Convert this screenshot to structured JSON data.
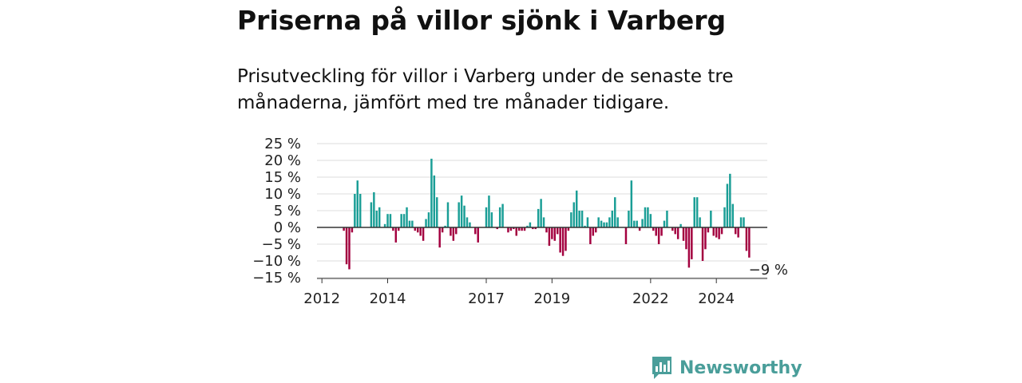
{
  "title": "Priserna på villor sjönk i Varberg",
  "subtitle": "Prisutveckling för villor i Varberg under de senaste tre månaderna, jämfört med tre månader tidigare.",
  "brand": {
    "name": "Newsworthy",
    "icon": "newsworthy-bar-chart-icon"
  },
  "colors": {
    "positive": "#1a9e96",
    "negative": "#a3003f",
    "grid": "#dddddd",
    "zero_line": "#333333",
    "brand": "#4a9e9a"
  },
  "chart_data": {
    "type": "bar",
    "ylim": [
      -15,
      25
    ],
    "y_ticks": [
      25,
      20,
      15,
      10,
      5,
      0,
      -5,
      -10,
      -15
    ],
    "y_tick_labels": [
      "25 %",
      "20 %",
      "15 %",
      "10 %",
      "5 %",
      "0 %",
      "−5 %",
      "−10 %",
      "−15 %"
    ],
    "x_ticks": [
      2012,
      2014,
      2017,
      2019,
      2022,
      2024
    ],
    "x_tick_labels": [
      "2012",
      "2014",
      "2017",
      "2019",
      "2022",
      "2024"
    ],
    "grid": true,
    "last_value_label": "−9 %",
    "series": [
      {
        "x_start": "2012-01",
        "frequency": "monthly",
        "values": [
          0,
          0,
          0,
          0,
          0,
          0,
          0,
          0,
          -1,
          -11,
          -12.5,
          -1.5,
          10,
          14,
          10,
          0,
          0,
          0,
          7.5,
          10.5,
          5,
          6,
          0,
          1,
          4,
          4,
          -1,
          -4.5,
          -1,
          4,
          4,
          6,
          2,
          2,
          -1,
          -1.5,
          -2.5,
          -4,
          2.5,
          4.5,
          20.5,
          15.5,
          9,
          -6,
          -1.5,
          0.5,
          7.5,
          -2.5,
          -4,
          -2,
          7.5,
          9.5,
          6.5,
          3,
          1.5,
          0,
          -2,
          -4.5,
          0,
          0,
          6,
          9.5,
          4.5,
          0,
          -0.5,
          6,
          7,
          0,
          -1.5,
          -1,
          -0.5,
          -2.5,
          -1,
          -1,
          -1,
          0.5,
          1.5,
          -0.5,
          -0.5,
          5.5,
          8.5,
          3,
          -1.5,
          -5.5,
          -3.5,
          -4,
          -2,
          -7.5,
          -8.5,
          -7,
          -1,
          4.5,
          7.5,
          11,
          5,
          5,
          0.5,
          3,
          -5,
          -2.5,
          -1.5,
          3,
          2,
          1.5,
          1.5,
          3,
          5,
          9,
          3,
          0,
          0,
          -5,
          5,
          14,
          2,
          2,
          -1,
          2.5,
          6,
          6,
          4,
          -1,
          -2.5,
          -5,
          -2.5,
          2,
          5,
          0,
          -1,
          -2,
          -3.5,
          1,
          -4,
          -6.5,
          -12,
          -9.5,
          9,
          9,
          3,
          -10,
          -6.5,
          -1.5,
          5,
          -2.5,
          -3,
          -3.5,
          -2,
          6,
          13,
          16,
          7,
          -2,
          -3,
          3,
          3,
          -7,
          -9
        ]
      }
    ]
  }
}
